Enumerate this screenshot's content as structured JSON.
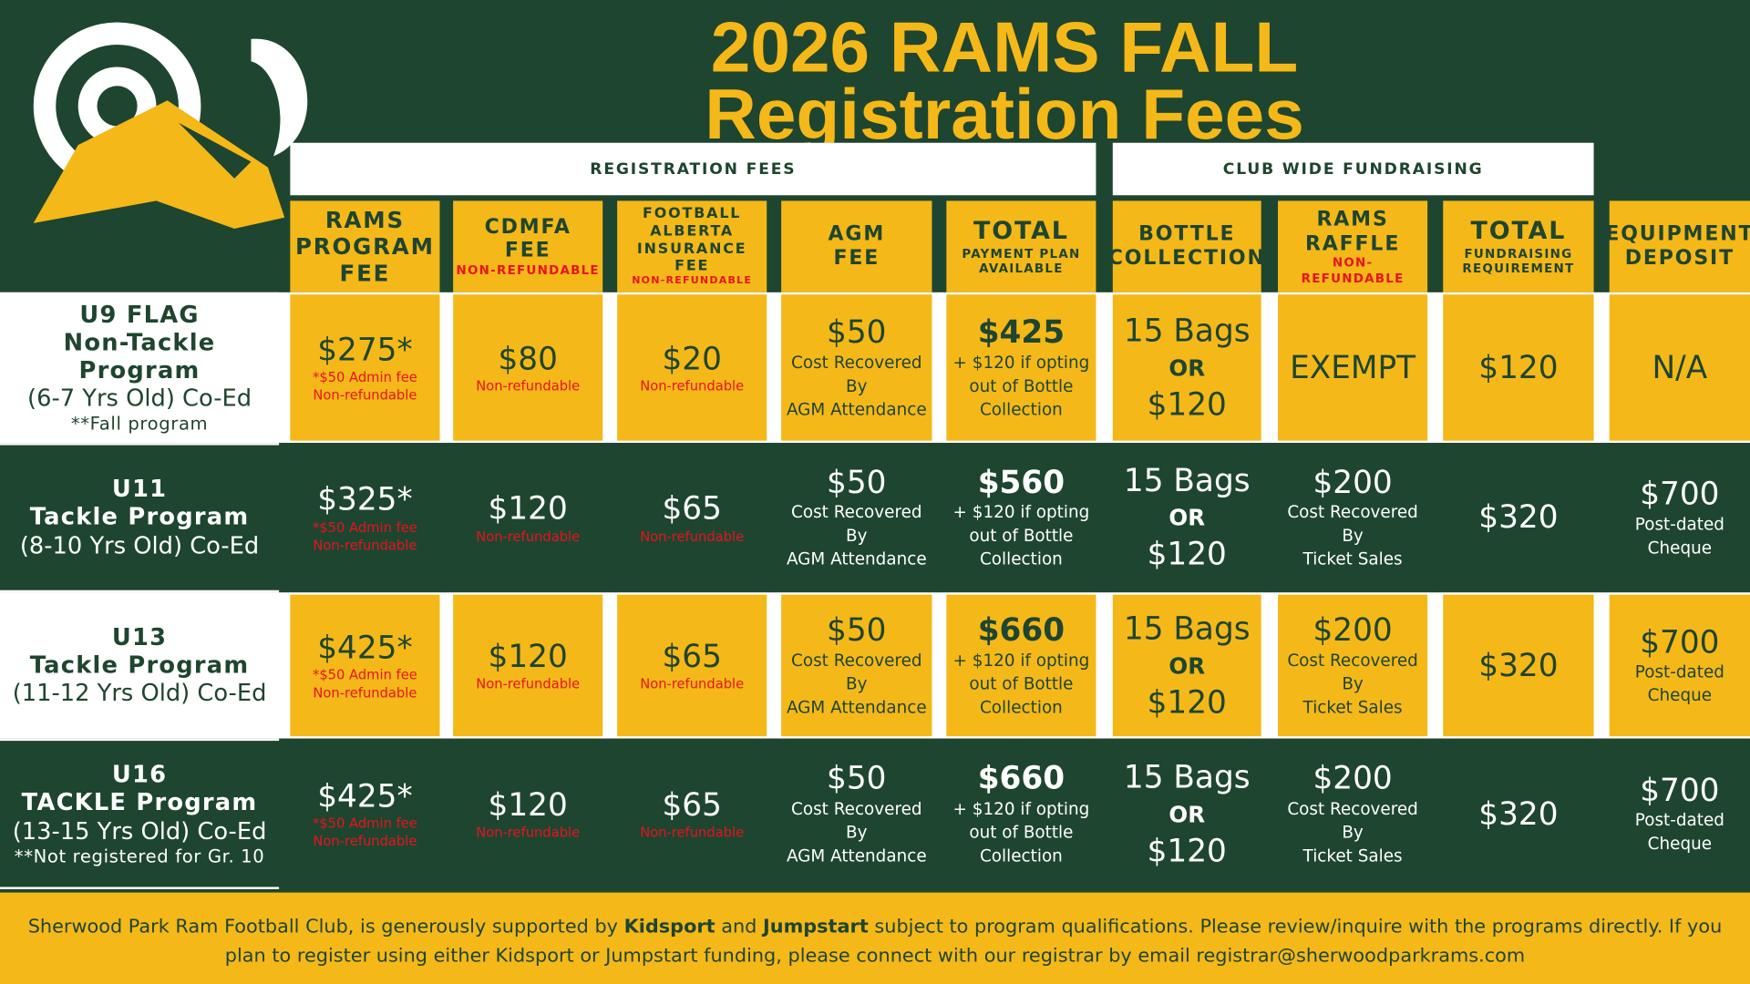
{
  "header": {
    "title": [
      "2026 RAMS FALL",
      "Registration Fees"
    ]
  },
  "groups": [
    "REGISTRATION FEES",
    "CLUB WIDE FUNDRAISING"
  ],
  "columns": [
    {
      "title": [
        "RAMS",
        "PROGRAM",
        "FEE"
      ]
    },
    {
      "title": [
        "CDMFA",
        "FEE"
      ],
      "note": [
        "NON-REFUNDABLE"
      ]
    },
    {
      "title": [
        "FOOTBALL",
        "ALBERTA",
        "INSURANCE FEE"
      ],
      "note": [
        "NON-REFUNDABLE"
      ]
    },
    {
      "title": [
        "AGM",
        "FEE"
      ]
    },
    {
      "title": [
        "TOTAL"
      ],
      "sub": [
        "PAYMENT PLAN",
        "AVAILABLE"
      ]
    },
    {
      "title": [
        "BOTTLE",
        "COLLECTION"
      ]
    },
    {
      "title": [
        "RAMS",
        "RAFFLE"
      ],
      "note": [
        "NON-",
        "REFUNDABLE"
      ]
    },
    {
      "title": [
        "TOTAL"
      ],
      "sub": [
        "FUNDRAISING",
        "REQUIREMENT"
      ]
    },
    {
      "title": [
        "EQUIPMENT",
        "DEPOSIT"
      ]
    }
  ],
  "rows": [
    {
      "label": [
        "U9 FLAG",
        "Non-Tackle Program",
        "(6-7 Yrs Old) Co-Ed",
        "**Fall program"
      ],
      "cells": [
        {
          "main": "$275*",
          "note": [
            "*$50 Admin fee",
            "Non-refundable"
          ]
        },
        {
          "main": "$80",
          "note": [
            "Non-refundable"
          ]
        },
        {
          "main": "$20",
          "note": [
            "Non-refundable"
          ]
        },
        {
          "main": "$50",
          "sub": [
            "Cost Recovered",
            "By",
            "AGM Attendance"
          ]
        },
        {
          "main": "$425",
          "sub": [
            "+ $120 if opting",
            "out of Bottle",
            "Collection"
          ]
        },
        {
          "main": "15 Bags",
          "or": "OR",
          "alt": "$120"
        },
        {
          "main": "EXEMPT"
        },
        {
          "main": "$120"
        },
        {
          "main": "N/A"
        }
      ]
    },
    {
      "label": [
        "U11",
        "Tackle Program",
        "(8-10 Yrs Old) Co-Ed"
      ],
      "cells": [
        {
          "main": "$325*",
          "note": [
            "*$50 Admin fee",
            "Non-refundable"
          ]
        },
        {
          "main": "$120",
          "note": [
            "Non-refundable"
          ]
        },
        {
          "main": "$65",
          "note": [
            "Non-refundable"
          ]
        },
        {
          "main": "$50",
          "sub": [
            "Cost Recovered",
            "By",
            "AGM Attendance"
          ]
        },
        {
          "main": "$560",
          "sub": [
            "+ $120 if opting",
            "out of Bottle",
            "Collection"
          ]
        },
        {
          "main": "15 Bags",
          "or": "OR",
          "alt": "$120"
        },
        {
          "main": "$200",
          "sub": [
            "Cost Recovered",
            "By",
            "Ticket Sales"
          ]
        },
        {
          "main": "$320"
        },
        {
          "main": "$700",
          "sub": [
            "Post-dated",
            "Cheque"
          ]
        }
      ]
    },
    {
      "label": [
        "U13",
        "Tackle Program",
        "(11-12 Yrs Old) Co-Ed"
      ],
      "cells": [
        {
          "main": "$425*",
          "note": [
            "*$50 Admin fee",
            "Non-refundable"
          ]
        },
        {
          "main": "$120",
          "note": [
            "Non-refundable"
          ]
        },
        {
          "main": "$65",
          "note": [
            "Non-refundable"
          ]
        },
        {
          "main": "$50",
          "sub": [
            "Cost Recovered",
            "By",
            "AGM Attendance"
          ]
        },
        {
          "main": "$660",
          "sub": [
            "+ $120 if opting",
            "out of Bottle",
            "Collection"
          ]
        },
        {
          "main": "15 Bags",
          "or": "OR",
          "alt": "$120"
        },
        {
          "main": "$200",
          "sub": [
            "Cost Recovered",
            "By",
            "Ticket Sales"
          ]
        },
        {
          "main": "$320"
        },
        {
          "main": "$700",
          "sub": [
            "Post-dated",
            "Cheque"
          ]
        }
      ]
    },
    {
      "label": [
        "U16",
        "TACKLE Program",
        "(13-15 Yrs Old) Co-Ed",
        "**Not registered for Gr. 10"
      ],
      "cells": [
        {
          "main": "$425*",
          "note": [
            "*$50 Admin fee",
            "Non-refundable"
          ]
        },
        {
          "main": "$120",
          "note": [
            "Non-refundable"
          ]
        },
        {
          "main": "$65",
          "note": [
            "Non-refundable"
          ]
        },
        {
          "main": "$50",
          "sub": [
            "Cost Recovered",
            "By",
            "AGM Attendance"
          ]
        },
        {
          "main": "$660",
          "sub": [
            "+ $120 if opting",
            "out of Bottle",
            "Collection"
          ]
        },
        {
          "main": "15 Bags",
          "or": "OR",
          "alt": "$120"
        },
        {
          "main": "$200",
          "sub": [
            "Cost Recovered",
            "By",
            "Ticket Sales"
          ]
        },
        {
          "main": "$320"
        },
        {
          "main": "$700",
          "sub": [
            "Post-dated",
            "Cheque"
          ]
        }
      ]
    }
  ],
  "footer": {
    "before": "Sherwood Park Ram Football Club, is generously supported by ",
    "kidsport": "Kidsport",
    "mid": " and ",
    "jumpstart": "Jumpstart",
    "after": " subject to program qualifications. Please review/inquire with the programs directly. If you plan to register using either Kidsport or Jumpstart funding, please connect with our registrar by email registrar@sherwoodparkrams.com"
  }
}
